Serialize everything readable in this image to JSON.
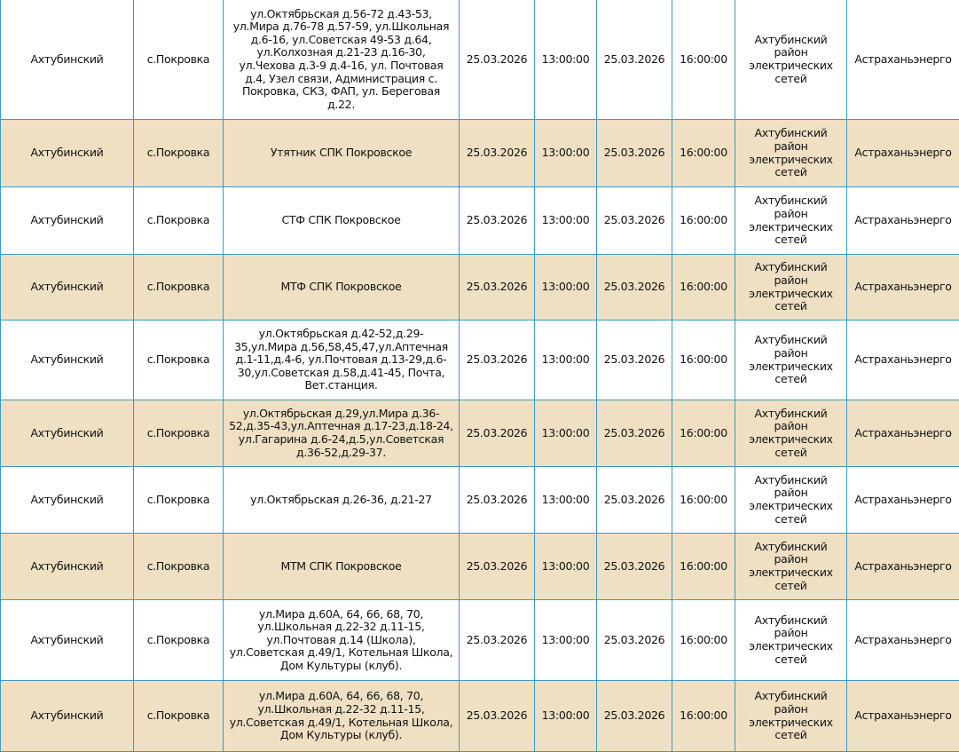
{
  "colors": {
    "row_alt": "#efdfc3",
    "border": "#3a9cc6"
  },
  "rows": [
    {
      "district": "Ахтубинский",
      "settlement": "с.Покровка",
      "address": "ул.Октябрьская д.56-72 д.43-53, ул.Мира д.76-78 д.57-59, ул.Школьная д.6-16, ул.Советская 49-53 д.64, ул.Колхозная д.21-23 д.16-30, ул.Чехова д.3-9 д.4-16, ул. Почтовая д.4, Узел связи, Администрация с. Покровка, СКЗ, ФАП, ул. Береговая д.22.",
      "start_date": "25.03.2026",
      "start_time": "13:00:00",
      "end_date": "25.03.2026",
      "end_time": "16:00:00",
      "network": "Ахтубинский район электрических сетей",
      "company": "Астраханьэнерго"
    },
    {
      "district": "Ахтубинский",
      "settlement": "с.Покровка",
      "address": "Утятник СПК Покровское",
      "start_date": "25.03.2026",
      "start_time": "13:00:00",
      "end_date": "25.03.2026",
      "end_time": "16:00:00",
      "network": "Ахтубинский район электрических сетей",
      "company": "Астраханьэнерго"
    },
    {
      "district": "Ахтубинский",
      "settlement": "с.Покровка",
      "address": "СТФ СПК Покровское",
      "start_date": "25.03.2026",
      "start_time": "13:00:00",
      "end_date": "25.03.2026",
      "end_time": "16:00:00",
      "network": "Ахтубинский район электрических сетей",
      "company": "Астраханьэнерго"
    },
    {
      "district": "Ахтубинский",
      "settlement": "с.Покровка",
      "address": "МТФ СПК Покровское",
      "start_date": "25.03.2026",
      "start_time": "13:00:00",
      "end_date": "25.03.2026",
      "end_time": "16:00:00",
      "network": "Ахтубинский район электрических сетей",
      "company": "Астраханьэнерго"
    },
    {
      "district": "Ахтубинский",
      "settlement": "с.Покровка",
      "address": "ул.Октябрьская д.42-52,д.29-35,ул.Мира д.56,58,45,47,ул.Аптечная д.1-11,д.4-6, ул.Почтовая д.13-29,д.6-30,ул.Советская д.58,д.41-45, Почта, Вет.станция.",
      "start_date": "25.03.2026",
      "start_time": "13:00:00",
      "end_date": "25.03.2026",
      "end_time": "16:00:00",
      "network": "Ахтубинский район электрических сетей",
      "company": "Астраханьэнерго"
    },
    {
      "district": "Ахтубинский",
      "settlement": "с.Покровка",
      "address": "ул.Октябрьская д.29,ул.Мира д.36-52,д.35-43,ул.Аптечная д.17-23,д.18-24, ул.Гагарина д.6-24,д.5,ул.Советская д.36-52,д.29-37.",
      "start_date": "25.03.2026",
      "start_time": "13:00:00",
      "end_date": "25.03.2026",
      "end_time": "16:00:00",
      "network": "Ахтубинский район электрических сетей",
      "company": "Астраханьэнерго"
    },
    {
      "district": "Ахтубинский",
      "settlement": "с.Покровка",
      "address": "ул.Октябрьская д.26-36, д.21-27",
      "start_date": "25.03.2026",
      "start_time": "13:00:00",
      "end_date": "25.03.2026",
      "end_time": "16:00:00",
      "network": "Ахтубинский район электрических сетей",
      "company": "Астраханьэнерго"
    },
    {
      "district": "Ахтубинский",
      "settlement": "с.Покровка",
      "address": "МТМ СПК Покровское",
      "start_date": "25.03.2026",
      "start_time": "13:00:00",
      "end_date": "25.03.2026",
      "end_time": "16:00:00",
      "network": "Ахтубинский район электрических сетей",
      "company": "Астраханьэнерго"
    },
    {
      "district": "Ахтубинский",
      "settlement": "с.Покровка",
      "address": "ул.Мира д.60А, 64, 66, 68, 70, ул.Школьная д.22-32 д.11-15, ул.Почтовая д.14 (Школа), ул.Советская д.49/1, Котельная Школа, Дом Культуры (клуб).",
      "start_date": "25.03.2026",
      "start_time": "13:00:00",
      "end_date": "25.03.2026",
      "end_time": "16:00:00",
      "network": "Ахтубинский район электрических сетей",
      "company": "Астраханьэнерго"
    },
    {
      "district": "Ахтубинский",
      "settlement": "с.Покровка",
      "address": "ул.Мира д.60А, 64, 66, 68, 70, ул.Школьная д.22-32 д.11-15, ул.Советская д.49/1, Котельная Школа, Дом Культуры (клуб).",
      "start_date": "25.03.2026",
      "start_time": "13:00:00",
      "end_date": "25.03.2026",
      "end_time": "16:00:00",
      "network": "Ахтубинский район электрических сетей",
      "company": "Астраханьэнерго"
    }
  ]
}
